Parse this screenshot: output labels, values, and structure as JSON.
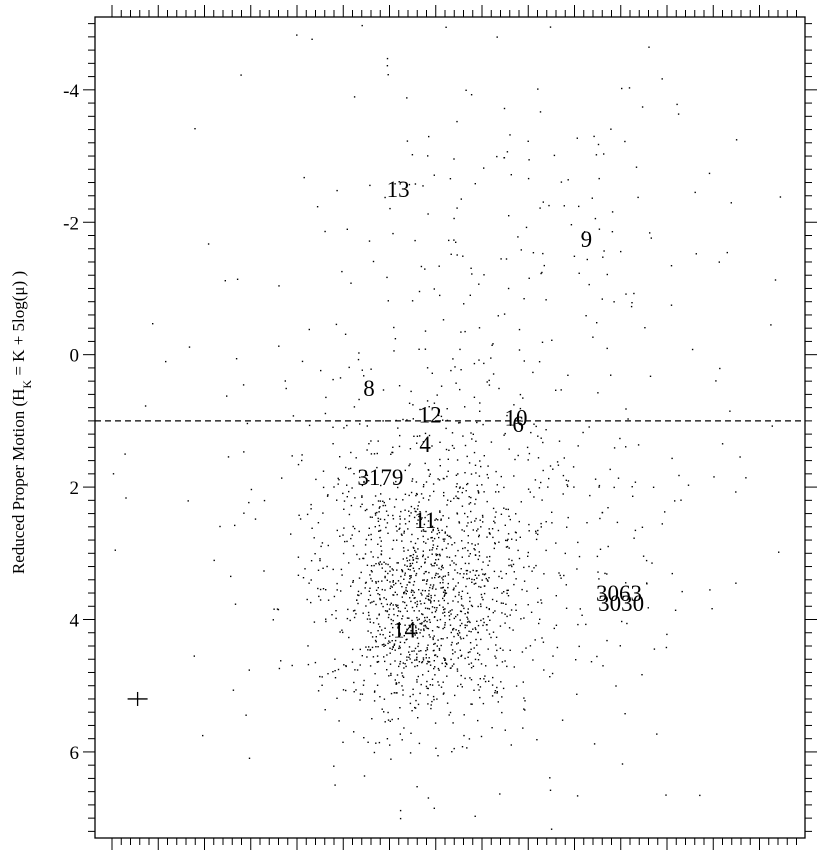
{
  "chart_data": {
    "type": "scatter",
    "title": "",
    "xlabel": "",
    "ylabel": "Reduced Proper Motion (H_K = K + 5log(μ) )",
    "ylabel_parts": {
      "prefix": "Reduced Proper Motion (H",
      "subscript": "K",
      "suffix": " = K + 5log(μ) )"
    },
    "y_inverted": true,
    "ylim": [
      -5.1,
      7.3
    ],
    "xlim": [
      0,
      1
    ],
    "x_tick_labels_shown": false,
    "y_ticks": [
      {
        "value": -4,
        "label": "-4"
      },
      {
        "value": -2,
        "label": "-2"
      },
      {
        "value": 0,
        "label": "0"
      },
      {
        "value": 2,
        "label": "2"
      },
      {
        "value": 4,
        "label": "4"
      },
      {
        "value": 6,
        "label": "6"
      }
    ],
    "threshold_line": {
      "y": 1.0,
      "style": "dashed"
    },
    "error_bar_marker": {
      "x": 0.06,
      "y": 5.2
    },
    "labeled_stars": [
      {
        "label": "13",
        "x": 0.427,
        "y": -2.5
      },
      {
        "label": "9",
        "x": 0.692,
        "y": -1.75
      },
      {
        "label": "8",
        "x": 0.386,
        "y": 0.5
      },
      {
        "label": "12",
        "x": 0.472,
        "y": 0.9
      },
      {
        "label": "10",
        "x": 0.593,
        "y": 0.95
      },
      {
        "label": "6",
        "x": 0.596,
        "y": 1.05
      },
      {
        "label": "4",
        "x": 0.465,
        "y": 1.35
      },
      {
        "label": "3179",
        "x": 0.402,
        "y": 1.85
      },
      {
        "label": "11",
        "x": 0.465,
        "y": 2.5
      },
      {
        "label": "3063",
        "x": 0.738,
        "y": 3.6
      },
      {
        "label": "3030",
        "x": 0.741,
        "y": 3.75
      },
      {
        "label": "14",
        "x": 0.436,
        "y": 4.15
      }
    ],
    "point_density_model": {
      "total_points": 2000,
      "components": [
        {
          "weight": 0.6,
          "x_center": 0.46,
          "x_spread": 0.07,
          "y_center": 3.6,
          "y_spread": 1.0
        },
        {
          "weight": 0.25,
          "x_center": 0.53,
          "x_spread": 0.13,
          "y_center": 2.5,
          "y_spread": 1.6
        },
        {
          "weight": 0.08,
          "x_center": 0.6,
          "x_spread": 0.17,
          "y_center": -2.0,
          "y_spread": 1.8
        },
        {
          "weight": 0.07,
          "x_center": 0.45,
          "x_spread": 0.32,
          "y_center": 2.0,
          "y_spread": 3.0
        }
      ]
    }
  }
}
